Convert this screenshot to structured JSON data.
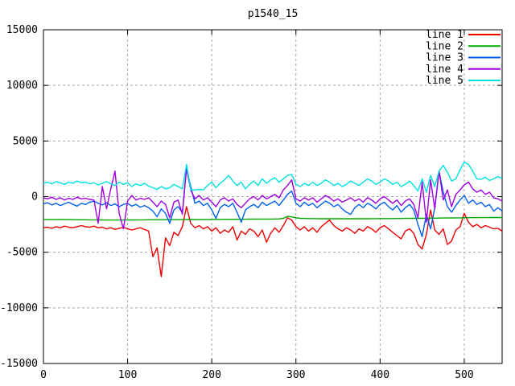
{
  "title": "p1540_15",
  "chart_data": {
    "type": "line",
    "title": "p1540_15",
    "xlabel": "",
    "ylabel": "",
    "xlim": [
      0,
      545
    ],
    "ylim": [
      -15000,
      15000
    ],
    "x_ticks": [
      0,
      100,
      200,
      300,
      400,
      500
    ],
    "y_ticks": [
      -15000,
      -10000,
      -5000,
      0,
      5000,
      10000,
      15000
    ],
    "grid": true,
    "grid_color": "#a8a8a8",
    "border_color": "#000000",
    "background": "#ffffff",
    "legend_position": "top-right-inside",
    "x": [
      0,
      5,
      10,
      15,
      20,
      25,
      30,
      35,
      40,
      45,
      50,
      55,
      60,
      65,
      70,
      75,
      80,
      85,
      90,
      95,
      100,
      105,
      110,
      115,
      120,
      125,
      130,
      135,
      140,
      145,
      150,
      155,
      160,
      165,
      170,
      175,
      180,
      185,
      190,
      195,
      200,
      205,
      210,
      215,
      220,
      225,
      230,
      235,
      240,
      245,
      250,
      255,
      260,
      265,
      270,
      275,
      280,
      285,
      290,
      295,
      300,
      305,
      310,
      315,
      320,
      325,
      330,
      335,
      340,
      345,
      350,
      355,
      360,
      365,
      370,
      375,
      380,
      385,
      390,
      395,
      400,
      405,
      410,
      415,
      420,
      425,
      430,
      435,
      440,
      445,
      450,
      455,
      460,
      465,
      470,
      475,
      480,
      485,
      490,
      495,
      500,
      505,
      510,
      515,
      520,
      525,
      530,
      535,
      540,
      545
    ],
    "series": [
      {
        "name": "line 1",
        "color": "#ee0000",
        "values": [
          -2800,
          -2750,
          -2850,
          -2700,
          -2800,
          -2650,
          -2750,
          -2800,
          -2700,
          -2600,
          -2700,
          -2750,
          -2650,
          -2800,
          -2750,
          -2900,
          -2800,
          -2950,
          -2850,
          -2750,
          -2900,
          -3000,
          -2900,
          -2800,
          -2950,
          -3100,
          -5400,
          -4600,
          -7200,
          -3700,
          -4400,
          -3200,
          -3500,
          -2700,
          -900,
          -2400,
          -2800,
          -2600,
          -2900,
          -2700,
          -3100,
          -2800,
          -3300,
          -3000,
          -3200,
          -2700,
          -3900,
          -3100,
          -3400,
          -2900,
          -3100,
          -3600,
          -3000,
          -4100,
          -3300,
          -2800,
          -3200,
          -2600,
          -1900,
          -2100,
          -2700,
          -3000,
          -2700,
          -3100,
          -2800,
          -3200,
          -2700,
          -2400,
          -2100,
          -2600,
          -2900,
          -3100,
          -2800,
          -3000,
          -3300,
          -2900,
          -3100,
          -2700,
          -2900,
          -3200,
          -2800,
          -2600,
          -2900,
          -3200,
          -3500,
          -3800,
          -3100,
          -2900,
          -3300,
          -4300,
          -4700,
          -3400,
          -1200,
          -3000,
          -3400,
          -2900,
          -4300,
          -4000,
          -3000,
          -2700,
          -1500,
          -2300,
          -2700,
          -2500,
          -2800,
          -2600,
          -2750,
          -2900,
          -2850,
          -3100
        ]
      },
      {
        "name": "line 2",
        "color": "#00a800",
        "values": [
          -2050,
          -2055,
          -2060,
          -2050,
          -2045,
          -2050,
          -2060,
          -2070,
          -2075,
          -2080,
          -2085,
          -2090,
          -2090,
          -2095,
          -2095,
          -2100,
          -2100,
          -2105,
          -2105,
          -2100,
          -2100,
          -2095,
          -2095,
          -2090,
          -2090,
          -2085,
          -2085,
          -2080,
          -2080,
          -2075,
          -2075,
          -2070,
          -2070,
          -2065,
          -2065,
          -2060,
          -2060,
          -2055,
          -2055,
          -2050,
          -2050,
          -2045,
          -2045,
          -2040,
          -2040,
          -2035,
          -2035,
          -2030,
          -2030,
          -2025,
          -2025,
          -2020,
          -2020,
          -2015,
          -2015,
          -2010,
          -2005,
          -1950,
          -1780,
          -1820,
          -1900,
          -1950,
          -1960,
          -1970,
          -1975,
          -1980,
          -1985,
          -1985,
          -1990,
          -1990,
          -1990,
          -1990,
          -1990,
          -1990,
          -1990,
          -1990,
          -1985,
          -1985,
          -1980,
          -1980,
          -1975,
          -1975,
          -1970,
          -1970,
          -1965,
          -1965,
          -1960,
          -1960,
          -1955,
          -1955,
          -1950,
          -1945,
          -1940,
          -1935,
          -1930,
          -1925,
          -1920,
          -1915,
          -1910,
          -1905,
          -1900,
          -1895,
          -1890,
          -1890,
          -1885,
          -1885,
          -1880,
          -1880,
          -1880,
          -1880
        ]
      },
      {
        "name": "line 3",
        "color": "#0060f0",
        "values": [
          -650,
          -550,
          -750,
          -600,
          -800,
          -650,
          -500,
          -700,
          -850,
          -600,
          -700,
          -500,
          -400,
          -600,
          -750,
          -550,
          -800,
          -650,
          -900,
          -700,
          -600,
          -850,
          -700,
          -950,
          -800,
          -1000,
          -1300,
          -1800,
          -1100,
          -1500,
          -2400,
          -1200,
          -900,
          -1400,
          2600,
          900,
          -600,
          -400,
          -800,
          -600,
          -1200,
          -1950,
          -1000,
          -700,
          -900,
          -600,
          -1400,
          -2300,
          -1200,
          -900,
          -700,
          -1000,
          -500,
          -800,
          -600,
          -400,
          -800,
          -300,
          200,
          500,
          -600,
          -900,
          -500,
          -800,
          -600,
          -1000,
          -700,
          -400,
          -600,
          -900,
          -700,
          -1100,
          -1400,
          -1600,
          -1000,
          -700,
          -1000,
          -600,
          -800,
          -1100,
          -700,
          -500,
          -900,
          -1200,
          -800,
          -1400,
          -1000,
          -700,
          -1200,
          -2500,
          -3600,
          -1600,
          -2900,
          -1000,
          2300,
          400,
          -900,
          -1400,
          -800,
          -300,
          100,
          -600,
          -300,
          -700,
          -500,
          -900,
          -700,
          -1300,
          -1000,
          -1300
        ]
      },
      {
        "name": "line 4",
        "color": "#a000e0",
        "values": [
          -100,
          -200,
          -50,
          -250,
          -100,
          -300,
          -150,
          -250,
          -50,
          -200,
          -150,
          -250,
          -300,
          -2400,
          900,
          -1100,
          700,
          2300,
          -1500,
          -2900,
          -400,
          100,
          -300,
          -150,
          -250,
          -100,
          -500,
          -900,
          -400,
          -700,
          -1900,
          -500,
          -300,
          -1600,
          2500,
          600,
          -200,
          100,
          -300,
          -100,
          -500,
          -900,
          -300,
          -100,
          -400,
          -200,
          -700,
          -1000,
          -600,
          -200,
          0,
          -300,
          100,
          -200,
          0,
          200,
          -100,
          600,
          1000,
          1500,
          -200,
          -400,
          -100,
          -300,
          -100,
          -500,
          -200,
          100,
          -100,
          -400,
          -200,
          -500,
          -300,
          -100,
          -400,
          -200,
          -500,
          -100,
          -300,
          -600,
          -200,
          0,
          -300,
          -600,
          -300,
          -800,
          -400,
          -200,
          -700,
          -1900,
          1300,
          -2300,
          1500,
          -1100,
          2300,
          -300,
          600,
          -900,
          200,
          600,
          1050,
          1300,
          700,
          400,
          600,
          200,
          400,
          -100,
          -200,
          -400
        ]
      },
      {
        "name": "line 5",
        "color": "#00e0e0",
        "values": [
          1200,
          1300,
          1150,
          1350,
          1250,
          1100,
          1300,
          1200,
          1400,
          1250,
          1300,
          1150,
          1250,
          1050,
          1200,
          1350,
          1150,
          1000,
          1300,
          1100,
          1250,
          900,
          1150,
          1000,
          1200,
          950,
          800,
          650,
          900,
          700,
          800,
          1100,
          900,
          700,
          2900,
          600,
          600,
          650,
          600,
          1000,
          1300,
          800,
          1200,
          1500,
          1900,
          1400,
          1000,
          1300,
          700,
          1100,
          1400,
          1000,
          1600,
          1200,
          1500,
          1700,
          1300,
          1600,
          1900,
          2000,
          1100,
          900,
          1200,
          1000,
          1300,
          1000,
          1200,
          1500,
          1300,
          1000,
          1200,
          900,
          1100,
          1400,
          1200,
          1000,
          1300,
          1600,
          1400,
          1100,
          1300,
          1600,
          1400,
          1100,
          1300,
          900,
          1100,
          1400,
          1000,
          500,
          1600,
          400,
          1900,
          900,
          2300,
          2800,
          2200,
          1400,
          1600,
          2400,
          3100,
          2900,
          2300,
          1600,
          1550,
          1750,
          1450,
          1600,
          1800,
          1650
        ]
      }
    ]
  },
  "layout_text": {
    "legend_labels": [
      "line 1",
      "line 2",
      "line 3",
      "line 4",
      "line 5"
    ]
  }
}
